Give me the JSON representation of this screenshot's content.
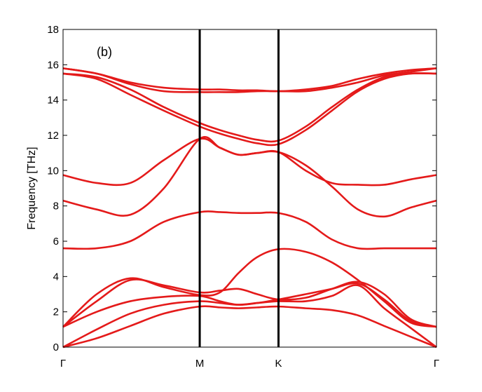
{
  "chart_data": {
    "type": "line",
    "panel_label": "(b)",
    "ylabel": "Frequency [THz]",
    "xlabel": "",
    "ylim": [
      0,
      18
    ],
    "yticks": [
      0,
      2,
      4,
      6,
      8,
      10,
      12,
      14,
      16,
      18
    ],
    "xlim": [
      0,
      1
    ],
    "high_symmetry_points": [
      {
        "label": "Γ",
        "x": 0.0
      },
      {
        "label": "M",
        "x": 0.366
      },
      {
        "label": "K",
        "x": 0.577
      },
      {
        "label": "Γ",
        "x": 1.0
      }
    ],
    "divider_lines_at": [
      0.366,
      0.577
    ],
    "grid": false,
    "line_color": "#e41a1a",
    "divider_color": "#000000",
    "x_samples": [
      0.0,
      0.09,
      0.18,
      0.27,
      0.366,
      0.42,
      0.47,
      0.52,
      0.577,
      0.65,
      0.72,
      0.79,
      0.86,
      0.93,
      1.0
    ],
    "series": [
      {
        "values": [
          0.0,
          0.5,
          1.2,
          1.9,
          2.3,
          2.25,
          2.2,
          2.25,
          2.3,
          2.2,
          2.1,
          1.8,
          1.2,
          0.6,
          0.0
        ]
      },
      {
        "values": [
          0.0,
          1.0,
          1.9,
          2.4,
          2.6,
          2.5,
          2.4,
          2.5,
          2.6,
          2.6,
          2.9,
          3.5,
          2.2,
          1.1,
          0.0
        ]
      },
      {
        "values": [
          1.15,
          2.0,
          2.6,
          2.85,
          2.9,
          2.6,
          2.4,
          2.5,
          2.7,
          3.0,
          3.3,
          3.6,
          2.7,
          1.5,
          1.15
        ]
      },
      {
        "values": [
          1.15,
          2.6,
          3.8,
          3.5,
          3.1,
          3.2,
          3.3,
          3.0,
          2.7,
          2.8,
          3.3,
          3.7,
          3.0,
          1.6,
          1.15
        ]
      },
      {
        "values": [
          1.15,
          3.0,
          3.9,
          3.4,
          2.95,
          3.1,
          4.2,
          5.1,
          5.55,
          5.4,
          4.8,
          3.8,
          2.6,
          1.4,
          1.15
        ]
      },
      {
        "values": [
          5.6,
          5.6,
          6.0,
          7.1,
          7.65,
          7.65,
          7.6,
          7.6,
          7.6,
          7.1,
          6.1,
          5.6,
          5.6,
          5.6,
          5.6
        ]
      },
      {
        "values": [
          8.3,
          7.8,
          7.5,
          9.0,
          11.8,
          11.3,
          10.9,
          11.0,
          11.05,
          10.3,
          9.1,
          7.8,
          7.4,
          7.9,
          8.3
        ]
      },
      {
        "values": [
          9.75,
          9.3,
          9.3,
          10.6,
          11.8,
          11.3,
          10.9,
          11.0,
          11.05,
          10.0,
          9.3,
          9.2,
          9.2,
          9.5,
          9.75
        ]
      },
      {
        "values": [
          15.5,
          15.2,
          14.3,
          13.4,
          12.5,
          12.1,
          11.8,
          11.55,
          11.5,
          12.3,
          13.4,
          14.5,
          15.2,
          15.5,
          15.5
        ]
      },
      {
        "values": [
          15.5,
          15.3,
          14.6,
          13.6,
          12.7,
          12.3,
          12.0,
          11.75,
          11.7,
          12.5,
          13.6,
          14.6,
          15.3,
          15.5,
          15.5
        ]
      },
      {
        "values": [
          15.8,
          15.5,
          14.9,
          14.5,
          14.45,
          14.45,
          14.45,
          14.5,
          14.5,
          14.5,
          14.7,
          15.0,
          15.4,
          15.6,
          15.8
        ]
      },
      {
        "values": [
          15.8,
          15.5,
          15.0,
          14.7,
          14.6,
          14.6,
          14.55,
          14.55,
          14.5,
          14.6,
          14.8,
          15.2,
          15.5,
          15.7,
          15.8
        ]
      }
    ]
  }
}
